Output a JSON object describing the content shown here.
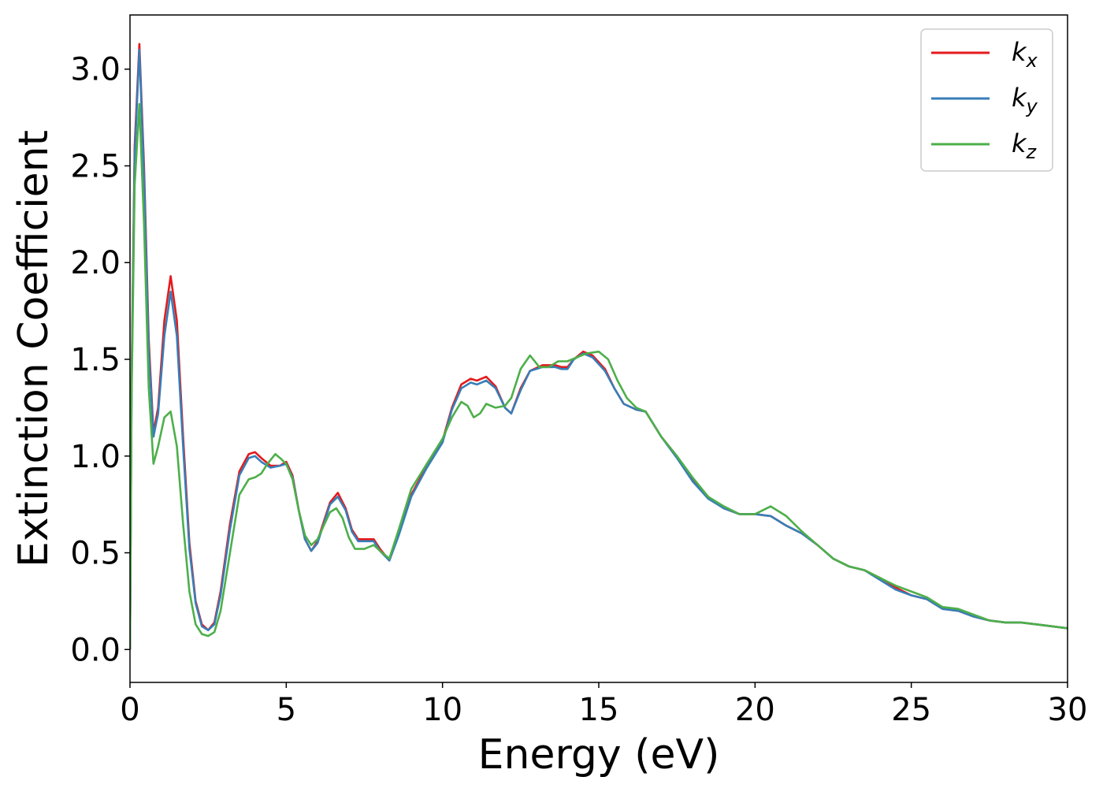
{
  "chart_data": {
    "type": "line",
    "title": "",
    "xlabel": "Energy (eV)",
    "ylabel": "Extinction Coefficient",
    "xlim": [
      0,
      30
    ],
    "ylim": [
      -0.17,
      3.28
    ],
    "xticks": [
      0,
      5,
      10,
      15,
      20,
      25,
      30
    ],
    "xtick_labels": [
      "0",
      "5",
      "10",
      "15",
      "20",
      "25",
      "30"
    ],
    "yticks": [
      0.0,
      0.5,
      1.0,
      1.5,
      2.0,
      2.5,
      3.0
    ],
    "ytick_labels": [
      "0.0",
      "0.5",
      "1.0",
      "1.5",
      "2.0",
      "2.5",
      "3.0"
    ],
    "grid": false,
    "legend_position": "top-right",
    "series": [
      {
        "name": "k",
        "subscript": "x",
        "color": "#e41a1c",
        "x": [
          0,
          0.05,
          0.15,
          0.3,
          0.45,
          0.6,
          0.75,
          0.9,
          1.1,
          1.3,
          1.5,
          1.7,
          1.9,
          2.1,
          2.3,
          2.5,
          2.7,
          2.9,
          3.2,
          3.5,
          3.8,
          4.0,
          4.2,
          4.5,
          4.8,
          5.0,
          5.2,
          5.4,
          5.6,
          5.8,
          6.0,
          6.2,
          6.4,
          6.65,
          6.9,
          7.1,
          7.3,
          7.5,
          7.8,
          8.0,
          8.3,
          8.6,
          9.0,
          9.5,
          10.0,
          10.3,
          10.6,
          10.9,
          11.1,
          11.4,
          11.7,
          12.0,
          12.2,
          12.5,
          12.8,
          13.2,
          13.6,
          13.8,
          14.0,
          14.2,
          14.5,
          14.8,
          15.2,
          15.5,
          15.8,
          16.2,
          16.5,
          17.0,
          17.5,
          18.0,
          18.5,
          19.0,
          19.5,
          20.0,
          20.5,
          21.0,
          21.5,
          22.0,
          22.5,
          23.0,
          23.5,
          24.0,
          24.5,
          25.0,
          25.5,
          26.0,
          26.5,
          27.0,
          27.5,
          28.0,
          28.5,
          29.0,
          29.5,
          30.0
        ],
        "y": [
          0.0,
          1.4,
          2.6,
          3.13,
          2.5,
          1.6,
          1.12,
          1.25,
          1.7,
          1.93,
          1.7,
          1.1,
          0.55,
          0.25,
          0.13,
          0.1,
          0.14,
          0.3,
          0.65,
          0.92,
          1.01,
          1.02,
          0.99,
          0.95,
          0.95,
          0.97,
          0.9,
          0.72,
          0.57,
          0.51,
          0.56,
          0.66,
          0.76,
          0.81,
          0.73,
          0.62,
          0.57,
          0.57,
          0.57,
          0.52,
          0.46,
          0.6,
          0.8,
          0.95,
          1.08,
          1.25,
          1.37,
          1.4,
          1.39,
          1.41,
          1.36,
          1.25,
          1.22,
          1.35,
          1.44,
          1.47,
          1.47,
          1.46,
          1.46,
          1.5,
          1.54,
          1.52,
          1.45,
          1.35,
          1.27,
          1.24,
          1.23,
          1.1,
          1.0,
          0.88,
          0.79,
          0.73,
          0.7,
          0.7,
          0.69,
          0.64,
          0.6,
          0.54,
          0.47,
          0.43,
          0.41,
          0.37,
          0.32,
          0.28,
          0.26,
          0.21,
          0.2,
          0.17,
          0.15,
          0.14,
          0.14,
          0.13,
          0.12,
          0.11
        ]
      },
      {
        "name": "k",
        "subscript": "y",
        "color": "#377eb8",
        "x": [
          0,
          0.05,
          0.15,
          0.3,
          0.45,
          0.6,
          0.75,
          0.9,
          1.1,
          1.3,
          1.5,
          1.7,
          1.9,
          2.1,
          2.3,
          2.5,
          2.7,
          2.9,
          3.2,
          3.5,
          3.8,
          4.0,
          4.2,
          4.5,
          4.8,
          5.0,
          5.2,
          5.4,
          5.6,
          5.8,
          6.0,
          6.2,
          6.4,
          6.65,
          6.9,
          7.1,
          7.3,
          7.5,
          7.8,
          8.0,
          8.3,
          8.6,
          9.0,
          9.5,
          10.0,
          10.3,
          10.6,
          10.9,
          11.1,
          11.4,
          11.7,
          12.0,
          12.2,
          12.5,
          12.8,
          13.2,
          13.6,
          13.8,
          14.0,
          14.2,
          14.5,
          14.8,
          15.2,
          15.5,
          15.8,
          16.2,
          16.5,
          17.0,
          17.5,
          18.0,
          18.5,
          19.0,
          19.5,
          20.0,
          20.5,
          21.0,
          21.5,
          22.0,
          22.5,
          23.0,
          23.5,
          24.0,
          24.5,
          25.0,
          25.5,
          26.0,
          26.5,
          27.0,
          27.5,
          28.0,
          28.5,
          29.0,
          29.5,
          30.0
        ],
        "y": [
          0.0,
          1.35,
          2.55,
          3.1,
          2.45,
          1.55,
          1.1,
          1.22,
          1.62,
          1.85,
          1.62,
          1.05,
          0.52,
          0.24,
          0.12,
          0.1,
          0.13,
          0.28,
          0.62,
          0.9,
          0.99,
          1.0,
          0.97,
          0.94,
          0.95,
          0.96,
          0.89,
          0.72,
          0.57,
          0.51,
          0.55,
          0.65,
          0.75,
          0.79,
          0.72,
          0.61,
          0.56,
          0.56,
          0.56,
          0.51,
          0.46,
          0.59,
          0.79,
          0.94,
          1.07,
          1.24,
          1.35,
          1.38,
          1.37,
          1.39,
          1.35,
          1.25,
          1.22,
          1.34,
          1.44,
          1.46,
          1.46,
          1.45,
          1.45,
          1.5,
          1.53,
          1.51,
          1.44,
          1.35,
          1.27,
          1.24,
          1.23,
          1.1,
          0.99,
          0.87,
          0.78,
          0.73,
          0.7,
          0.7,
          0.69,
          0.64,
          0.6,
          0.54,
          0.47,
          0.43,
          0.41,
          0.36,
          0.31,
          0.28,
          0.26,
          0.21,
          0.2,
          0.17,
          0.15,
          0.14,
          0.14,
          0.13,
          0.12,
          0.11
        ]
      },
      {
        "name": "k",
        "subscript": "z",
        "color": "#4daf4a",
        "x": [
          0,
          0.05,
          0.15,
          0.3,
          0.45,
          0.6,
          0.75,
          0.9,
          1.1,
          1.3,
          1.5,
          1.7,
          1.9,
          2.1,
          2.3,
          2.5,
          2.7,
          2.9,
          3.2,
          3.5,
          3.8,
          4.0,
          4.2,
          4.4,
          4.65,
          4.8,
          5.0,
          5.2,
          5.4,
          5.6,
          5.8,
          6.0,
          6.2,
          6.4,
          6.6,
          6.8,
          7.0,
          7.2,
          7.5,
          7.8,
          8.0,
          8.3,
          8.6,
          9.0,
          9.5,
          10.0,
          10.3,
          10.6,
          10.8,
          11.0,
          11.2,
          11.4,
          11.7,
          12.0,
          12.2,
          12.5,
          12.8,
          13.1,
          13.4,
          13.7,
          14.0,
          14.3,
          14.6,
          15.0,
          15.3,
          15.6,
          15.9,
          16.2,
          16.5,
          17.0,
          17.5,
          18.0,
          18.5,
          19.0,
          19.5,
          20.0,
          20.5,
          21.0,
          21.5,
          22.0,
          22.5,
          23.0,
          23.5,
          24.0,
          24.5,
          25.0,
          25.5,
          26.0,
          26.5,
          27.0,
          27.5,
          28.0,
          28.5,
          29.0,
          29.5,
          30.0
        ],
        "y": [
          0.0,
          1.3,
          2.4,
          2.82,
          2.2,
          1.35,
          0.96,
          1.05,
          1.2,
          1.23,
          1.05,
          0.65,
          0.3,
          0.13,
          0.08,
          0.07,
          0.09,
          0.2,
          0.5,
          0.8,
          0.88,
          0.89,
          0.91,
          0.96,
          1.01,
          0.99,
          0.96,
          0.88,
          0.72,
          0.59,
          0.54,
          0.57,
          0.64,
          0.71,
          0.73,
          0.68,
          0.58,
          0.52,
          0.52,
          0.54,
          0.51,
          0.47,
          0.62,
          0.83,
          0.96,
          1.09,
          1.2,
          1.28,
          1.26,
          1.2,
          1.22,
          1.27,
          1.25,
          1.26,
          1.3,
          1.45,
          1.52,
          1.46,
          1.46,
          1.49,
          1.49,
          1.51,
          1.53,
          1.54,
          1.5,
          1.39,
          1.3,
          1.25,
          1.23,
          1.1,
          1.0,
          0.89,
          0.79,
          0.74,
          0.7,
          0.7,
          0.74,
          0.69,
          0.61,
          0.54,
          0.47,
          0.43,
          0.41,
          0.37,
          0.33,
          0.3,
          0.27,
          0.22,
          0.21,
          0.18,
          0.15,
          0.14,
          0.14,
          0.13,
          0.12,
          0.11
        ]
      }
    ]
  }
}
